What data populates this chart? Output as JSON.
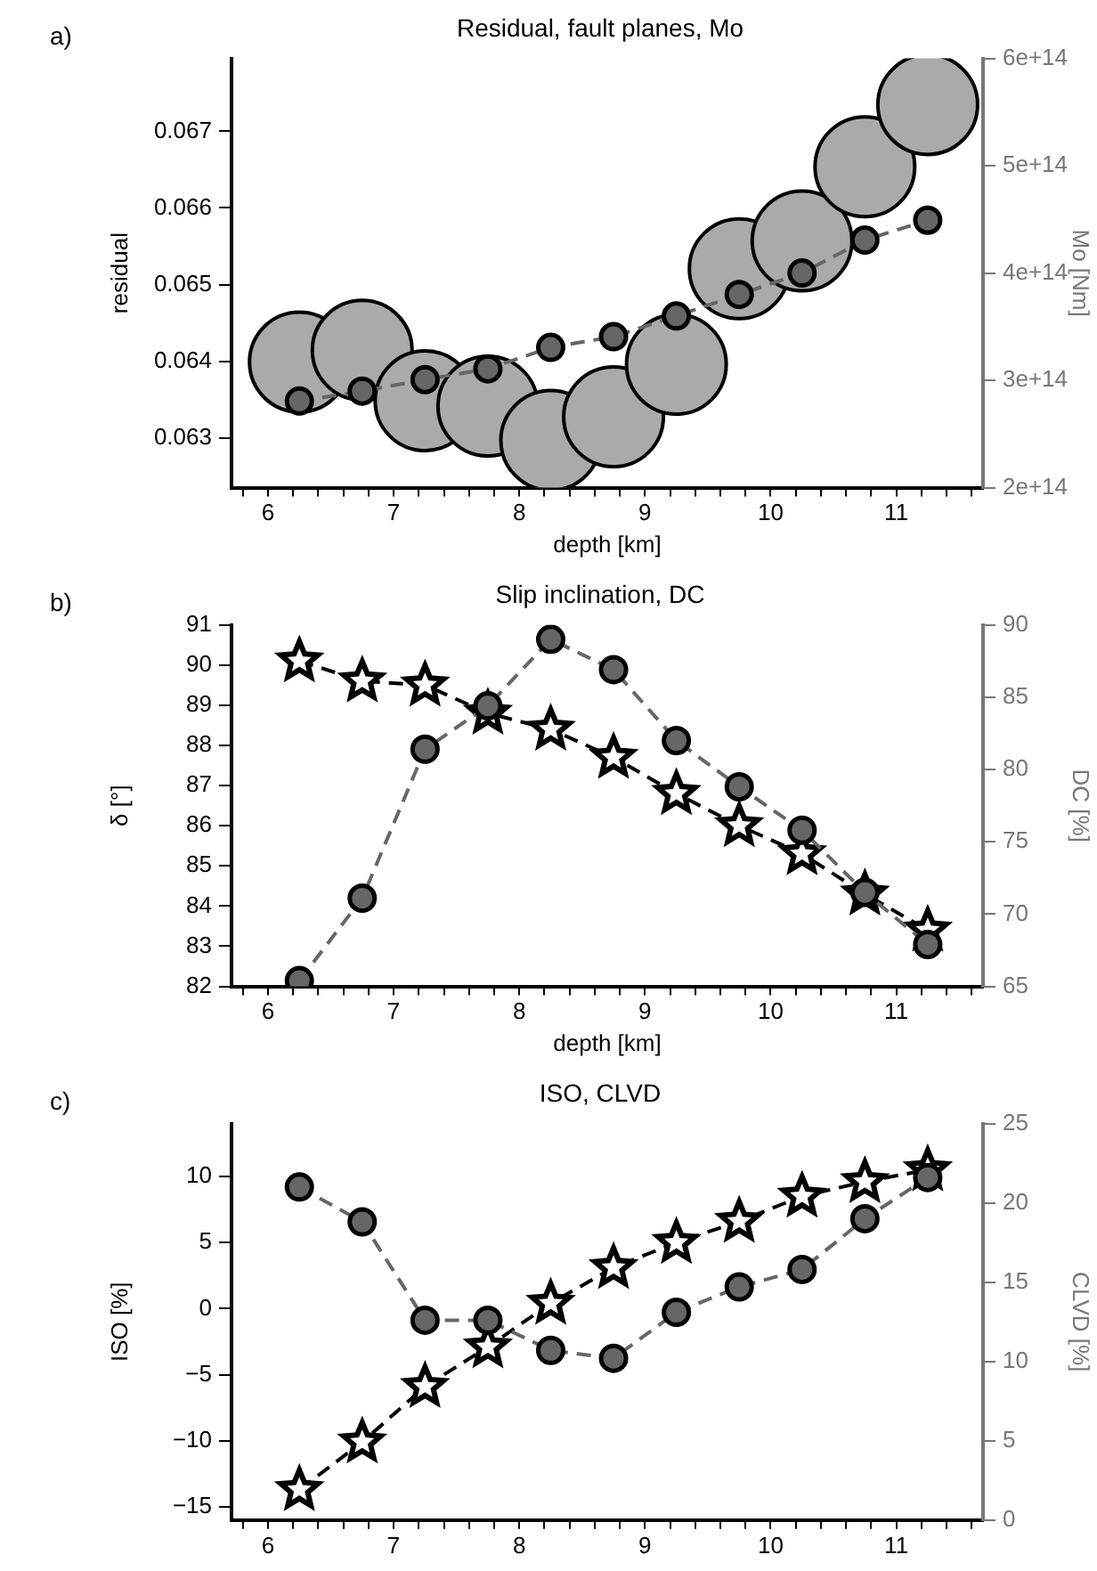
{
  "chart_data": [
    {
      "type": "line",
      "title": "Residual, fault planes, Mo",
      "xlabel": "depth [km]",
      "ylabel": "residual",
      "y2label": "Mo [Nm]",
      "annotations": [
        "a)"
      ],
      "grid": false,
      "legend": false,
      "x": [
        6.25,
        6.75,
        7.25,
        7.75,
        8.25,
        8.75,
        9.25,
        9.75,
        10.25,
        10.75,
        11.25
      ],
      "xlim": [
        5.71,
        11.69
      ],
      "xticks": [
        {
          "value": 5.8,
          "label": null
        },
        6,
        {
          "value": 6.2,
          "label": null
        },
        {
          "value": 6.4,
          "label": null
        },
        {
          "value": 6.6,
          "label": null
        },
        {
          "value": 6.8,
          "label": null
        },
        7,
        {
          "value": 7.2,
          "label": null
        },
        {
          "value": 7.4,
          "label": null
        },
        {
          "value": 7.6,
          "label": null
        },
        {
          "value": 7.8,
          "label": null
        },
        8,
        {
          "value": 8.2,
          "label": null
        },
        {
          "value": 8.4,
          "label": null
        },
        {
          "value": 8.6,
          "label": null
        },
        {
          "value": 8.8,
          "label": null
        },
        9,
        {
          "value": 9.2,
          "label": null
        },
        {
          "value": 9.4,
          "label": null
        },
        {
          "value": 9.6,
          "label": null
        },
        {
          "value": 9.8,
          "label": null
        },
        10,
        {
          "value": 10.2,
          "label": null
        },
        {
          "value": 10.4,
          "label": null
        },
        {
          "value": 10.6,
          "label": null
        },
        {
          "value": 10.8,
          "label": null
        },
        11,
        {
          "value": 11.2,
          "label": null
        },
        {
          "value": 11.4,
          "label": null
        },
        {
          "value": 11.6,
          "label": null
        }
      ],
      "ylim": [
        0.06235,
        0.06795
      ],
      "yticks": [
        0.063,
        0.064,
        0.065,
        0.066,
        0.067
      ],
      "y2lim": [
        200000000000000.0,
        600000000000000.0
      ],
      "y2ticks": [
        {
          "value": 200000000000000.0,
          "label": "2e+14"
        },
        {
          "value": 300000000000000.0,
          "label": "3e+14"
        },
        {
          "value": 400000000000000.0,
          "label": "4e+14"
        },
        {
          "value": 500000000000000.0,
          "label": "5e+14"
        },
        {
          "value": 600000000000000.0,
          "label": "6e+14"
        }
      ],
      "series": [
        {
          "type": "line",
          "color": "#666666",
          "marker": "circle",
          "line_style": "dashed",
          "values": [
            0.06348,
            0.06361,
            0.06376,
            0.0639,
            0.06418,
            0.06432,
            0.06459,
            0.06487,
            0.06515,
            0.06558,
            0.06584
          ]
        },
        {
          "type": "scatter",
          "axis": "y2",
          "color": "#aaaaaa",
          "marker": "circle",
          "values": [
            317000000000000.0,
            328000000000000.0,
            281000000000000.0,
            276000000000000.0,
            244000000000000.0,
            266000000000000.0,
            315000000000000.0,
            404000000000000.0,
            430000000000000.0,
            499000000000000.0,
            557000000000000.0
          ]
        }
      ]
    },
    {
      "type": "line",
      "title": "Slip inclination, DC",
      "xlabel": "depth [km]",
      "ylabel": "δ [°]",
      "y2label": "DC [%]",
      "annotations": [
        "b)"
      ],
      "grid": false,
      "legend": false,
      "x": [
        6.25,
        6.75,
        7.25,
        7.75,
        8.25,
        8.75,
        9.25,
        9.75,
        10.25,
        10.75,
        11.25
      ],
      "xlim": [
        5.71,
        11.69
      ],
      "xticks": [
        {
          "value": 5.8,
          "label": null
        },
        6,
        {
          "value": 6.2,
          "label": null
        },
        {
          "value": 6.4,
          "label": null
        },
        {
          "value": 6.6,
          "label": null
        },
        {
          "value": 6.8,
          "label": null
        },
        7,
        {
          "value": 7.2,
          "label": null
        },
        {
          "value": 7.4,
          "label": null
        },
        {
          "value": 7.6,
          "label": null
        },
        {
          "value": 7.8,
          "label": null
        },
        8,
        {
          "value": 8.2,
          "label": null
        },
        {
          "value": 8.4,
          "label": null
        },
        {
          "value": 8.6,
          "label": null
        },
        {
          "value": 8.8,
          "label": null
        },
        9,
        {
          "value": 9.2,
          "label": null
        },
        {
          "value": 9.4,
          "label": null
        },
        {
          "value": 9.6,
          "label": null
        },
        {
          "value": 9.8,
          "label": null
        },
        10,
        {
          "value": 10.2,
          "label": null
        },
        {
          "value": 10.4,
          "label": null
        },
        {
          "value": 10.6,
          "label": null
        },
        {
          "value": 10.8,
          "label": null
        },
        11,
        {
          "value": 11.2,
          "label": null
        },
        {
          "value": 11.4,
          "label": null
        },
        {
          "value": 11.6,
          "label": null
        }
      ],
      "ylim": [
        82,
        91
      ],
      "yticks": [
        82,
        83,
        84,
        85,
        86,
        87,
        88,
        89,
        90,
        91
      ],
      "y2lim": [
        65,
        90
      ],
      "y2ticks": [
        65,
        70,
        75,
        80,
        85,
        90
      ],
      "series": [
        {
          "type": "line",
          "axis": "y2",
          "color": "#666666",
          "marker": "circle",
          "line_style": "dashed",
          "values": [
            65.4,
            71.1,
            81.4,
            84.4,
            89.0,
            86.9,
            82.0,
            78.8,
            75.8,
            71.5,
            67.9
          ]
        },
        {
          "type": "line",
          "color": "#000000",
          "marker": "star",
          "line_style": "dashed",
          "values": [
            90.1,
            89.6,
            89.5,
            88.8,
            88.4,
            87.7,
            86.8,
            86.0,
            85.3,
            84.3,
            83.4
          ]
        }
      ]
    },
    {
      "type": "line",
      "title": "ISO, CLVD",
      "ylabel": "ISO [%]",
      "y2label": "CLVD [%]",
      "annotations": [
        "c)"
      ],
      "grid": false,
      "legend": false,
      "x": [
        6.25,
        6.75,
        7.25,
        7.75,
        8.25,
        8.75,
        9.25,
        9.75,
        10.25,
        10.75,
        11.25
      ],
      "xlim": [
        5.71,
        11.69
      ],
      "xticks": [
        {
          "value": 5.8,
          "label": null
        },
        6,
        {
          "value": 6.2,
          "label": null
        },
        {
          "value": 6.4,
          "label": null
        },
        {
          "value": 6.6,
          "label": null
        },
        {
          "value": 6.8,
          "label": null
        },
        7,
        {
          "value": 7.2,
          "label": null
        },
        {
          "value": 7.4,
          "label": null
        },
        {
          "value": 7.6,
          "label": null
        },
        {
          "value": 7.8,
          "label": null
        },
        8,
        {
          "value": 8.2,
          "label": null
        },
        {
          "value": 8.4,
          "label": null
        },
        {
          "value": 8.6,
          "label": null
        },
        {
          "value": 8.8,
          "label": null
        },
        9,
        {
          "value": 9.2,
          "label": null
        },
        {
          "value": 9.4,
          "label": null
        },
        {
          "value": 9.6,
          "label": null
        },
        {
          "value": 9.8,
          "label": null
        },
        10,
        {
          "value": 10.2,
          "label": null
        },
        {
          "value": 10.4,
          "label": null
        },
        {
          "value": 10.6,
          "label": null
        },
        {
          "value": 10.8,
          "label": null
        },
        11,
        {
          "value": 11.2,
          "label": null
        },
        {
          "value": 11.4,
          "label": null
        },
        {
          "value": 11.6,
          "label": null
        }
      ],
      "ylim": [
        -16,
        14
      ],
      "yticks": [
        {
          "value": -15,
          "label": "−15"
        },
        {
          "value": -10,
          "label": "−10"
        },
        {
          "value": -5,
          "label": "−5"
        },
        0,
        5,
        10
      ],
      "y2lim": [
        0,
        25
      ],
      "y2ticks": [
        0,
        5,
        10,
        15,
        20,
        25
      ],
      "series": [
        {
          "type": "line",
          "axis": "y2",
          "color": "#666666",
          "marker": "circle",
          "line_style": "dashed",
          "values": [
            21.0,
            18.8,
            12.6,
            12.6,
            10.7,
            10.2,
            13.1,
            14.7,
            15.8,
            19.0,
            21.6
          ]
        },
        {
          "type": "line",
          "color": "#000000",
          "marker": "star",
          "line_style": "dashed",
          "values": [
            -13.7,
            -10.1,
            -5.9,
            -2.9,
            0.4,
            3.1,
            5.0,
            6.6,
            8.5,
            9.6,
            10.5
          ]
        }
      ]
    }
  ]
}
